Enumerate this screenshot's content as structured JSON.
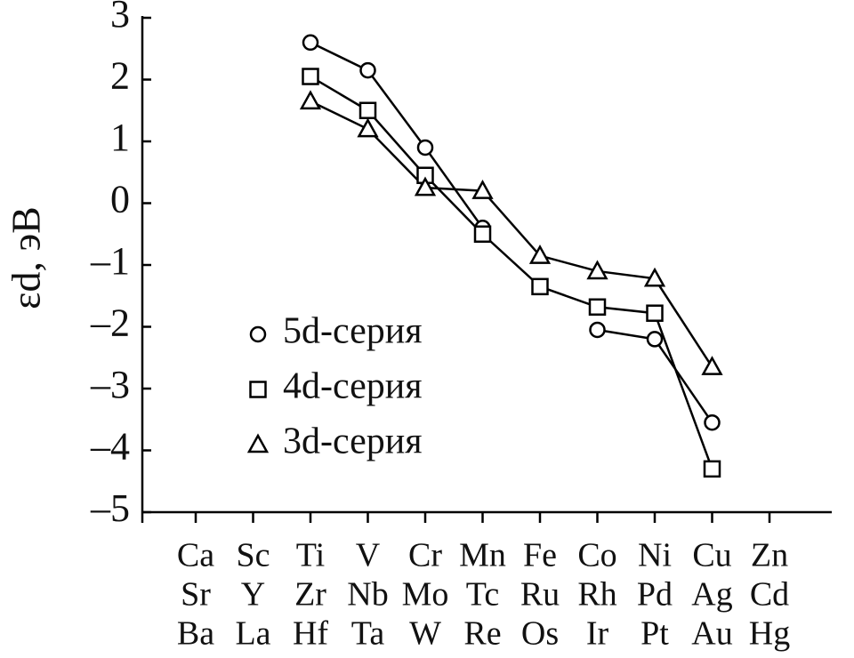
{
  "chart_data": {
    "type": "line",
    "y_label": "εd, эВ",
    "categories": [
      [
        "Ca",
        "Sr",
        "Ba"
      ],
      [
        "Sc",
        "Y",
        "La"
      ],
      [
        "Ti",
        "Zr",
        "Hf"
      ],
      [
        "V",
        "Nb",
        "Ta"
      ],
      [
        "Cr",
        "Mo",
        "W"
      ],
      [
        "Mn",
        "Tc",
        "Re"
      ],
      [
        "Fe",
        "Ru",
        "Os"
      ],
      [
        "Co",
        "Rh",
        "Ir"
      ],
      [
        "Ni",
        "Pd",
        "Pt"
      ],
      [
        "Cu",
        "Ag",
        "Au"
      ],
      [
        "Zn",
        "Cd",
        "Hg"
      ]
    ],
    "series": [
      {
        "name": "5d-серия",
        "color": "#000000",
        "marker": "circle",
        "values": [
          null,
          null,
          2.6,
          2.15,
          0.9,
          -0.4,
          null,
          -2.05,
          -2.2,
          -3.55,
          null
        ]
      },
      {
        "name": "4d-серия",
        "color": "#000000",
        "marker": "square",
        "values": [
          null,
          null,
          2.05,
          1.5,
          0.45,
          -0.5,
          -1.35,
          -1.68,
          -1.78,
          -4.3,
          null
        ]
      },
      {
        "name": "3d-серия",
        "color": "#000000",
        "marker": "triangle",
        "values": [
          null,
          null,
          1.65,
          1.2,
          0.25,
          0.2,
          -0.85,
          -1.1,
          -1.22,
          -2.65,
          null
        ]
      }
    ],
    "ylim": [
      -5,
      3
    ],
    "yticks": [
      {
        "value": -5,
        "label": "–5"
      },
      {
        "value": -4,
        "label": "–4"
      },
      {
        "value": -3,
        "label": "–3"
      },
      {
        "value": -2,
        "label": "–2"
      },
      {
        "value": -1,
        "label": "–1"
      },
      0,
      1,
      2,
      3
    ],
    "legend": "lower-left"
  }
}
